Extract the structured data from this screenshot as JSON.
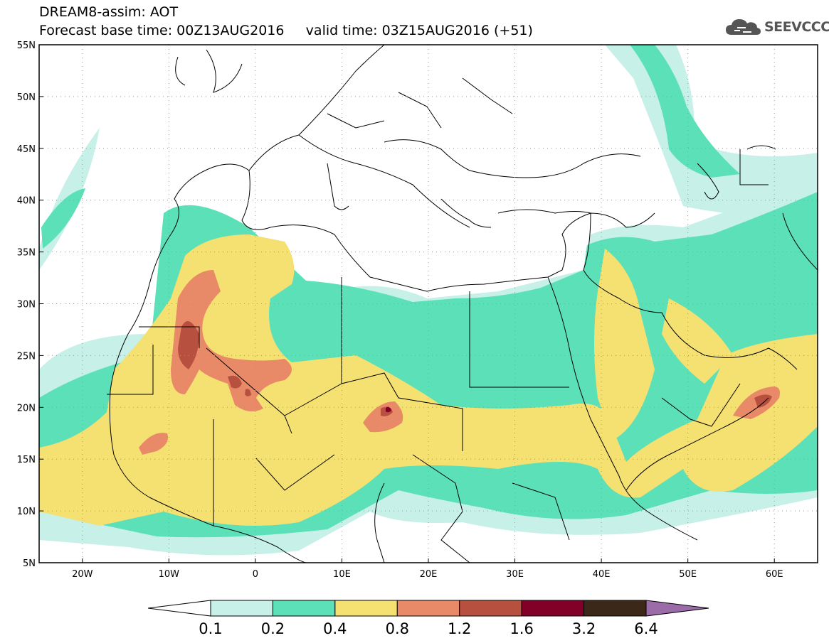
{
  "header": {
    "title_line1": "DREAM8-assim: AOT",
    "title_line2": "Forecast base time: 00Z13AUG2016     valid time: 03Z15AUG2016 (+51)",
    "logo_text": "SEEVCCC"
  },
  "map": {
    "lon_range": [
      -25,
      65
    ],
    "lat_range": [
      5,
      55
    ],
    "lat_ticks": [
      {
        "value": 55,
        "label": "55N"
      },
      {
        "value": 50,
        "label": "50N"
      },
      {
        "value": 45,
        "label": "45N"
      },
      {
        "value": 40,
        "label": "40N"
      },
      {
        "value": 35,
        "label": "35N"
      },
      {
        "value": 30,
        "label": "30N"
      },
      {
        "value": 25,
        "label": "25N"
      },
      {
        "value": 20,
        "label": "20N"
      },
      {
        "value": 15,
        "label": "15N"
      },
      {
        "value": 10,
        "label": "10N"
      },
      {
        "value": 5,
        "label": "5N"
      }
    ],
    "lon_ticks": [
      {
        "value": -20,
        "label": "20W"
      },
      {
        "value": -10,
        "label": "10W"
      },
      {
        "value": 0,
        "label": "0"
      },
      {
        "value": 10,
        "label": "10E"
      },
      {
        "value": 20,
        "label": "20E"
      },
      {
        "value": 30,
        "label": "30E"
      },
      {
        "value": 40,
        "label": "40E"
      },
      {
        "value": 50,
        "label": "50E"
      },
      {
        "value": 60,
        "label": "60E"
      }
    ]
  },
  "legend": {
    "labels": [
      "0.1",
      "0.2",
      "0.4",
      "0.8",
      "1.2",
      "1.6",
      "3.2",
      "6.4"
    ],
    "colors": [
      "#ffffff",
      "#c6f0e8",
      "#5ce0b8",
      "#f5e072",
      "#e88a68",
      "#b85040",
      "#820028",
      "#3c2818",
      "#9b6ca8"
    ]
  }
}
